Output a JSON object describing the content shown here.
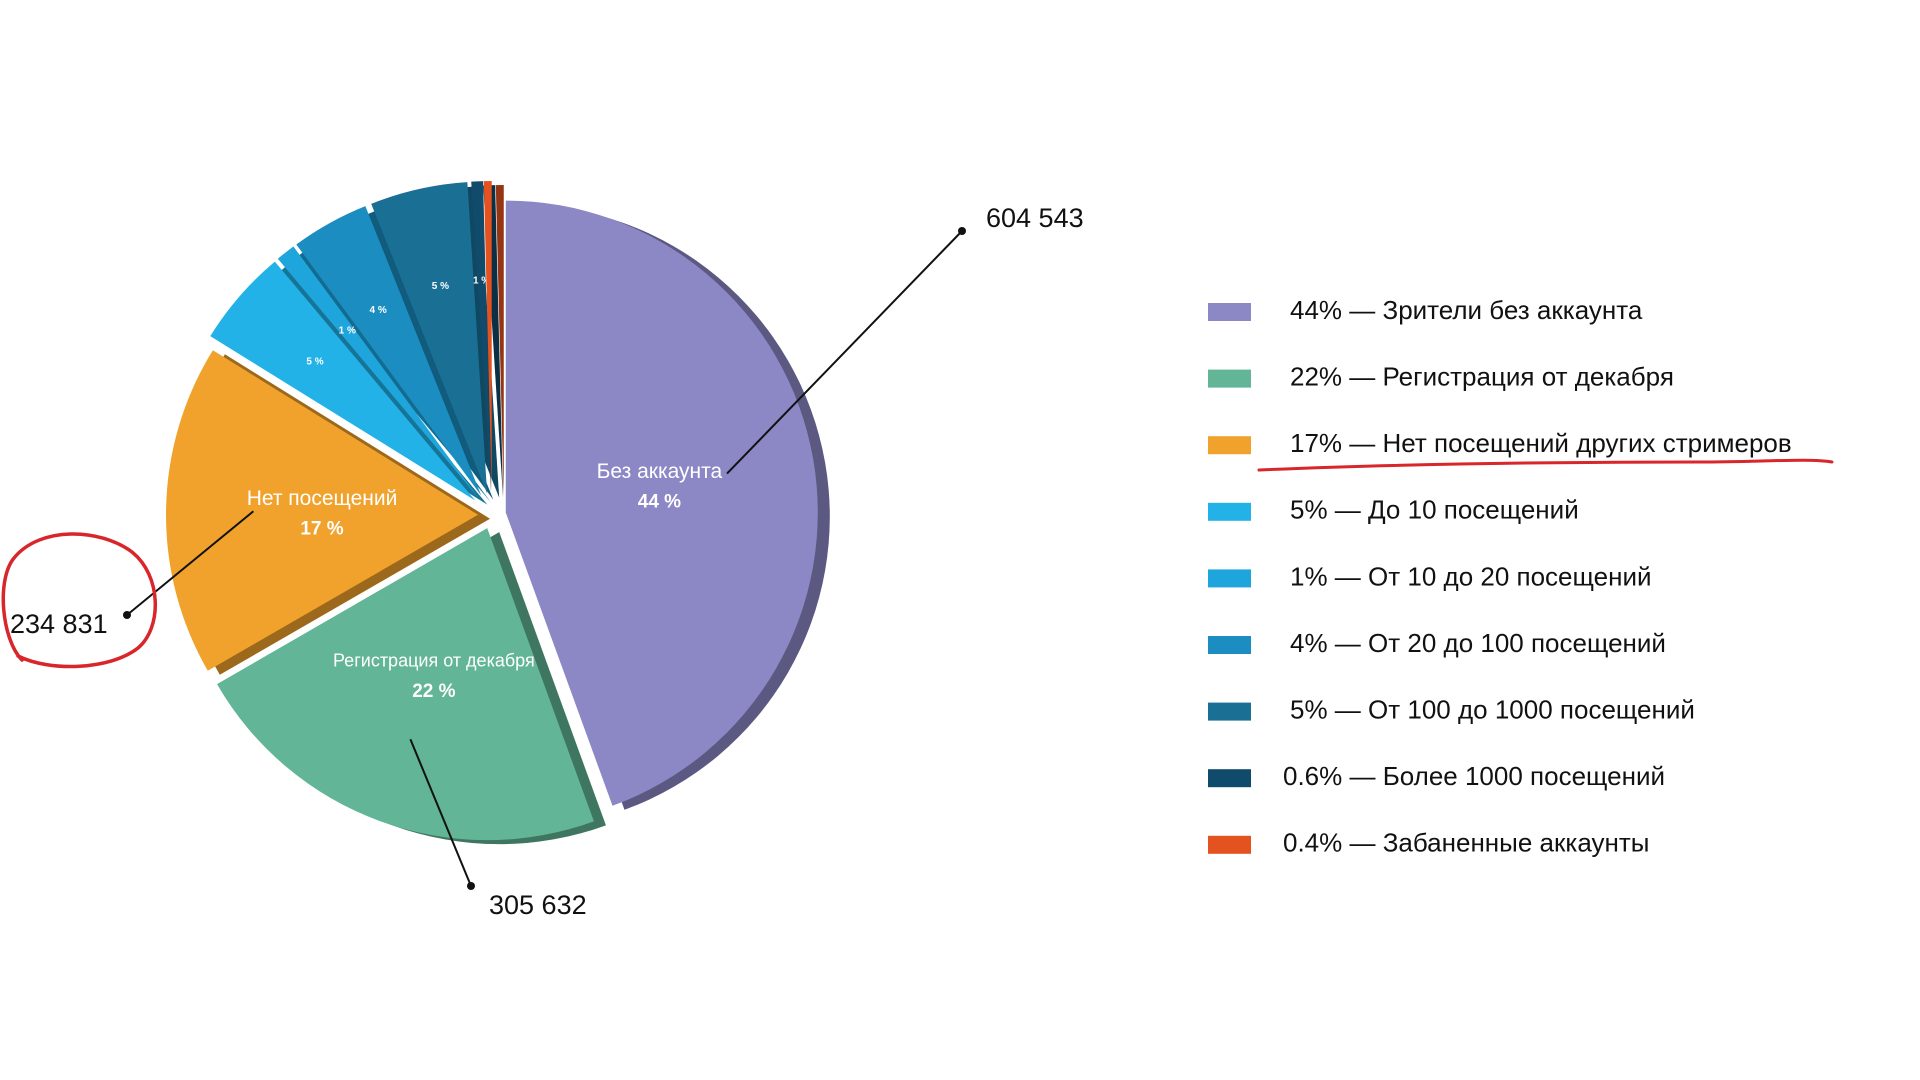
{
  "chart_data": {
    "type": "pie",
    "categories": [
      "44% — Зрители без аккаунта",
      "22% — Регистрация от декабря",
      "17% — Нет посещений других стримеров",
      "5% — До 10 посещений",
      "1% — От 10 до 20 посещений",
      "4% — От 20 до 100 посещений",
      "5% — От 100 до 1000 посещений",
      "0.6% — Более 1000 посещений",
      "0.4% — Забаненные аккаунты"
    ],
    "values": [
      44,
      22,
      17,
      5,
      1,
      4,
      5,
      0.6,
      0.4
    ],
    "colors": [
      "#8c88c6",
      "#62b596",
      "#f0a22c",
      "#22b2e8",
      "#1ea5dc",
      "#1b8dc0",
      "#1a6f95",
      "#114b6c",
      "#e4521f"
    ],
    "slice_names": [
      "Без аккаунта",
      "Регистрация от декабря",
      "Нет посещений",
      null,
      null,
      null,
      null,
      null,
      null
    ],
    "value_labels": [
      "44 %",
      "22 %",
      "17 %",
      "5 %",
      "1 %",
      "4 %",
      "5 %",
      "1 %",
      null
    ],
    "annotations": [
      "604 543",
      "305 632",
      "234 831",
      null,
      null,
      null,
      null,
      null,
      null
    ]
  }
}
